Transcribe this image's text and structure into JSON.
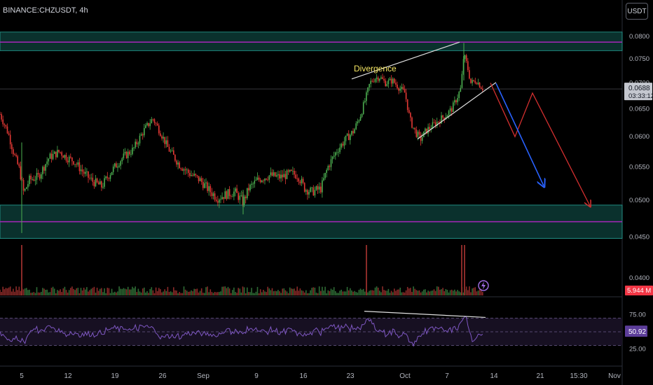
{
  "header": {
    "symbol": "BINANCE:CHZUSDT, 4h",
    "currency": "USDT"
  },
  "price_axis": {
    "ticks": [
      "0.0800",
      "0.0750",
      "0.0700",
      "0.0650",
      "0.0600",
      "0.0550",
      "0.0500",
      "0.0450",
      "0.0400"
    ],
    "last_price": "0.0688",
    "countdown": "03:33:12",
    "volume_label": "5.944 M"
  },
  "rsi_axis": {
    "ticks": [
      "75.00",
      "25.00"
    ],
    "value": "50.92"
  },
  "time_axis": {
    "labels": [
      "5",
      "12",
      "19",
      "26",
      "Sep",
      "9",
      "16",
      "23",
      "Oct",
      "7",
      "14",
      "21",
      "15:30",
      "Nov"
    ]
  },
  "annotations": {
    "divergence": "Divergence"
  },
  "colors": {
    "up": "#4caf50",
    "down": "#e53935",
    "rsi_line": "#7e57c2",
    "zone_fill": "#0c3a35",
    "zone_border": "#26a69a",
    "resistance_line": "#9c27b0",
    "projection_red": "#d32f2f",
    "projection_blue": "#2962ff"
  },
  "chart_data": {
    "type": "candlestick",
    "symbol": "BINANCE:CHZUSDT",
    "interval": "4h",
    "close_path": [
      [
        0,
        0.064
      ],
      [
        12,
        0.0605
      ],
      [
        20,
        0.057
      ],
      [
        28,
        0.0545
      ],
      [
        34,
        0.051
      ],
      [
        42,
        0.053
      ],
      [
        55,
        0.0535
      ],
      [
        70,
        0.0565
      ],
      [
        85,
        0.0575
      ],
      [
        95,
        0.0565
      ],
      [
        105,
        0.056
      ],
      [
        120,
        0.054
      ],
      [
        132,
        0.0528
      ],
      [
        145,
        0.052
      ],
      [
        160,
        0.0545
      ],
      [
        175,
        0.0565
      ],
      [
        190,
        0.0578
      ],
      [
        205,
        0.061
      ],
      [
        218,
        0.0632
      ],
      [
        228,
        0.061
      ],
      [
        240,
        0.058
      ],
      [
        255,
        0.0555
      ],
      [
        270,
        0.054
      ],
      [
        285,
        0.053
      ],
      [
        298,
        0.0515
      ],
      [
        310,
        0.0503
      ],
      [
        322,
        0.0508
      ],
      [
        335,
        0.0512
      ],
      [
        347,
        0.0497
      ],
      [
        355,
        0.0517
      ],
      [
        368,
        0.053
      ],
      [
        385,
        0.0537
      ],
      [
        400,
        0.0534
      ],
      [
        415,
        0.054
      ],
      [
        425,
        0.0537
      ],
      [
        435,
        0.0517
      ],
      [
        445,
        0.0512
      ],
      [
        458,
        0.0517
      ],
      [
        468,
        0.055
      ],
      [
        480,
        0.0575
      ],
      [
        493,
        0.0595
      ],
      [
        505,
        0.061
      ],
      [
        515,
        0.064
      ],
      [
        522,
        0.067
      ],
      [
        528,
        0.07
      ],
      [
        535,
        0.071
      ],
      [
        542,
        0.0712
      ],
      [
        550,
        0.07
      ],
      [
        560,
        0.0705
      ],
      [
        570,
        0.069
      ],
      [
        578,
        0.068
      ],
      [
        585,
        0.063
      ],
      [
        592,
        0.061
      ],
      [
        600,
        0.0595
      ],
      [
        608,
        0.061
      ],
      [
        618,
        0.062
      ],
      [
        628,
        0.063
      ],
      [
        638,
        0.064
      ],
      [
        645,
        0.065
      ],
      [
        652,
        0.067
      ],
      [
        658,
        0.069
      ],
      [
        662,
        0.076
      ],
      [
        666,
        0.074
      ],
      [
        672,
        0.07
      ],
      [
        680,
        0.0705
      ],
      [
        688,
        0.069
      ]
    ],
    "volume_spikes": [
      [
        31,
        "big"
      ],
      [
        523,
        "big"
      ],
      [
        659,
        "big"
      ],
      [
        663,
        "big"
      ]
    ],
    "zones": [
      {
        "low": 0.0768,
        "high": 0.081,
        "label": "resistance"
      },
      {
        "low": 0.0448,
        "high": 0.0493,
        "label": "support"
      }
    ],
    "resistance_line": 0.0787,
    "support_line": 0.047,
    "divergence_price": [
      [
        502,
        0.0708
      ],
      [
        656,
        0.0787
      ]
    ],
    "divergence_rsi": [
      [
        520,
        80
      ],
      [
        693,
        71
      ]
    ],
    "trendline": [
      [
        596,
        0.0596
      ],
      [
        708,
        0.0701
      ]
    ],
    "projection_red": [
      [
        700,
        0.07
      ],
      [
        735,
        0.06
      ],
      [
        760,
        0.068
      ],
      [
        842,
        0.0492
      ]
    ],
    "projection_blue": [
      [
        708,
        0.0699
      ],
      [
        776,
        0.0521
      ]
    ],
    "rsi": {
      "upper": 70,
      "mid": 50,
      "lower": 30,
      "last": 50.92
    },
    "y_axis": {
      "min": 0.04,
      "max": 0.08,
      "log": true
    }
  }
}
